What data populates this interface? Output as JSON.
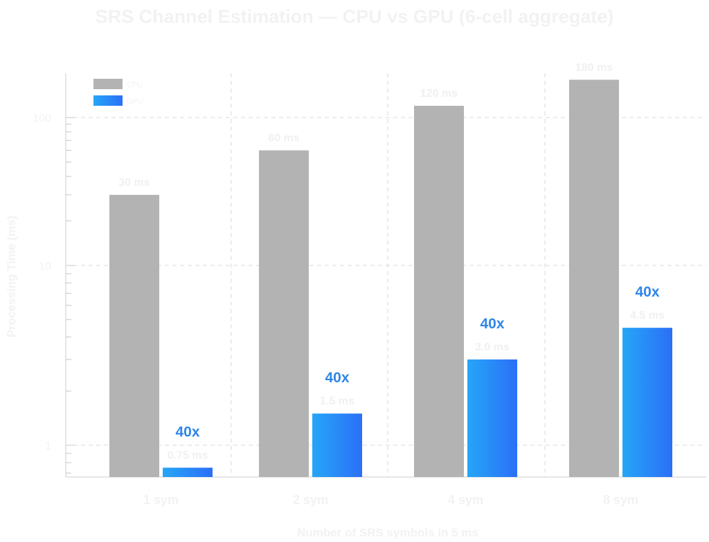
{
  "chart_data": {
    "type": "bar",
    "title": "SRS Channel Estimation — CPU vs GPU (6-cell aggregate)",
    "xlabel": "Number of SRS symbols in 5 ms",
    "ylabel": "Processing Time (ms)",
    "yscale": "log",
    "ylim": [
      0.6,
      140
    ],
    "yticks": [
      1,
      10,
      100
    ],
    "ytick_labels": [
      "1",
      "10",
      "100"
    ],
    "grid": true,
    "legend_position": "top-left",
    "categories": [
      "1 sym",
      "2 sym",
      "4 sym",
      "8 sym"
    ],
    "series": [
      {
        "name": "CPU",
        "color": "#b3b3b3",
        "values": [
          30,
          60,
          120,
          180
        ],
        "labels": [
          "30 ms",
          "60 ms",
          "120 ms",
          "180 ms"
        ]
      },
      {
        "name": "GPU",
        "color": "#2b6ff7",
        "values": [
          0.75,
          1.5,
          3.0,
          4.5
        ],
        "labels": [
          "0.75 ms",
          "1.5 ms",
          "3.0 ms",
          "4.5 ms"
        ]
      }
    ],
    "speedup_labels": [
      "40x",
      "40x",
      "40x",
      "40x"
    ]
  }
}
